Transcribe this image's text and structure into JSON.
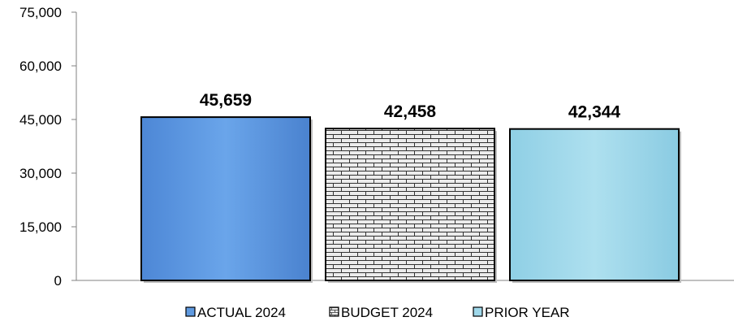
{
  "chart_data": {
    "type": "bar",
    "categories": [
      "ACTUAL 2024",
      "BUDGET 2024",
      "PRIOR YEAR"
    ],
    "values": [
      45659,
      42458,
      42344
    ],
    "data_labels": [
      "45,659",
      "42,458",
      "42,344"
    ],
    "ylim": [
      0,
      75000
    ],
    "yticks": [
      0,
      15000,
      30000,
      45000,
      60000,
      75000
    ],
    "ytick_labels": [
      "0",
      "15,000",
      "30,000",
      "45,000",
      "60,000",
      "75,000"
    ],
    "title": "",
    "xlabel": "",
    "ylabel": "",
    "grid": false,
    "legend_position": "bottom",
    "colors": [
      "#5f9ae0",
      "#e6e6e6",
      "#9fd8ea"
    ],
    "patterns": [
      "solid",
      "brick",
      "solid"
    ]
  }
}
